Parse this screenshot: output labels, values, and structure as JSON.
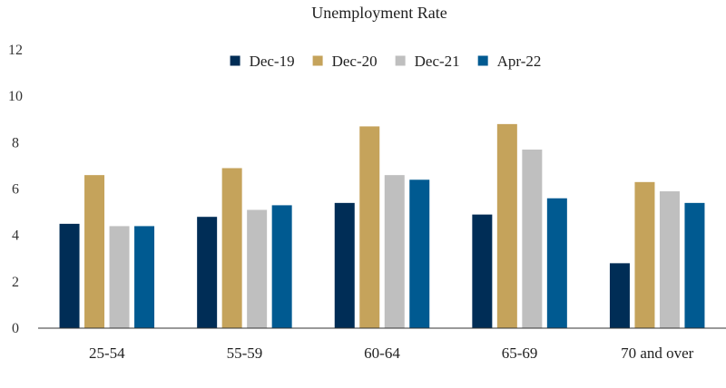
{
  "chart_data": {
    "type": "bar",
    "title": "Unemployment Rate",
    "xlabel": "",
    "ylabel": "",
    "ylim": [
      0,
      12
    ],
    "yticks": [
      0,
      2,
      4,
      6,
      8,
      10,
      12
    ],
    "grid": false,
    "legend_position": "top",
    "categories": [
      "25-54",
      "55-59",
      "60-64",
      "65-69",
      "70 and over"
    ],
    "series": [
      {
        "name": "Dec-19",
        "color": "#002d56",
        "values": [
          4.5,
          4.8,
          5.4,
          4.9,
          2.8
        ]
      },
      {
        "name": "Dec-20",
        "color": "#c5a35b",
        "values": [
          6.6,
          6.9,
          8.7,
          8.8,
          6.3
        ]
      },
      {
        "name": "Dec-21",
        "color": "#bfbfbf",
        "values": [
          4.4,
          5.1,
          6.6,
          7.7,
          5.9
        ]
      },
      {
        "name": "Apr-22",
        "color": "#005a91",
        "values": [
          4.4,
          5.3,
          6.4,
          5.6,
          5.4
        ]
      }
    ]
  }
}
